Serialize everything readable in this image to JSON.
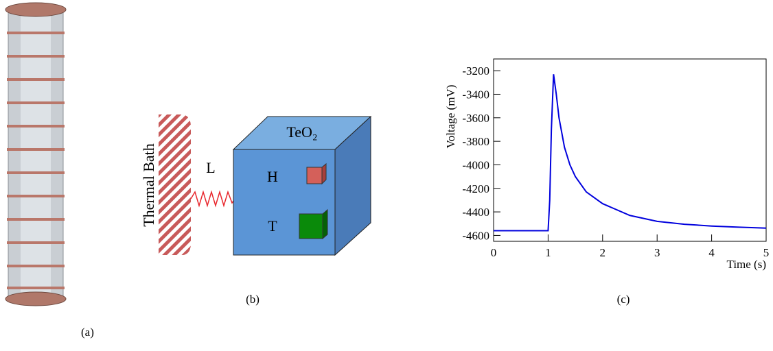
{
  "panels": {
    "a": {
      "label": "(a)"
    },
    "b": {
      "label": "(b)",
      "bath": "Thermal Bath",
      "link": "L",
      "crystal": "TeO₂",
      "heater": "H",
      "thermistor": "T"
    },
    "c": {
      "label": "(c)"
    }
  },
  "chart_data": {
    "type": "line",
    "xlabel": "Time (s)",
    "ylabel": "Voltage (mV)",
    "xlim": [
      0,
      5
    ],
    "ylim": [
      -4650,
      -3100
    ],
    "xticks": [
      0,
      1,
      2,
      3,
      4,
      5
    ],
    "yticks": [
      -4600,
      -4400,
      -4200,
      -4000,
      -3800,
      -3600,
      -3400,
      -3200
    ],
    "x": [
      0,
      0.5,
      1.0,
      1.03,
      1.06,
      1.1,
      1.15,
      1.2,
      1.3,
      1.4,
      1.5,
      1.7,
      2.0,
      2.5,
      3,
      3.5,
      4,
      4.5,
      5
    ],
    "series": [
      {
        "color": "#0000dd",
        "values": [
          -4560,
          -4560,
          -4560,
          -4300,
          -3700,
          -3230,
          -3400,
          -3600,
          -3850,
          -4000,
          -4100,
          -4230,
          -4330,
          -4430,
          -4480,
          -4505,
          -4520,
          -4530,
          -4538
        ]
      }
    ]
  }
}
